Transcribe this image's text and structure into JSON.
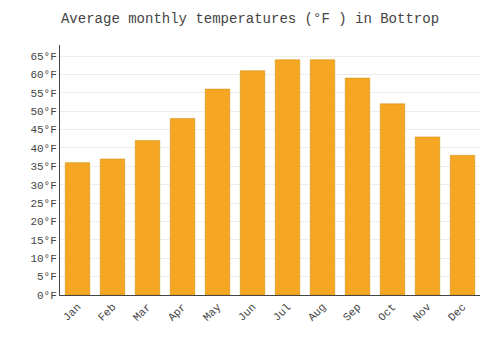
{
  "chart_data": {
    "type": "bar",
    "title": "Average monthly temperatures (°F ) in Bottrop",
    "categories": [
      "Jan",
      "Feb",
      "Mar",
      "Apr",
      "May",
      "Jun",
      "Jul",
      "Aug",
      "Sep",
      "Oct",
      "Nov",
      "Dec"
    ],
    "values": [
      36,
      37,
      42,
      48,
      56,
      61,
      64,
      64,
      59,
      52,
      43,
      38
    ],
    "color": "#F5A623",
    "ylim": [
      0,
      68
    ],
    "yticks": [
      {
        "value": 0,
        "label": "0°F"
      },
      {
        "value": 5,
        "label": "5°F"
      },
      {
        "value": 10,
        "label": "10°F"
      },
      {
        "value": 15,
        "label": "15°F"
      },
      {
        "value": 20,
        "label": "20°F"
      },
      {
        "value": 25,
        "label": "25°F"
      },
      {
        "value": 30,
        "label": "30°F"
      },
      {
        "value": 35,
        "label": "35°F"
      },
      {
        "value": 40,
        "label": "40°F"
      },
      {
        "value": 45,
        "label": "45°F"
      },
      {
        "value": 50,
        "label": "50°F"
      },
      {
        "value": 55,
        "label": "55°F"
      },
      {
        "value": 60,
        "label": "60°F"
      },
      {
        "value": 65,
        "label": "65°F"
      }
    ],
    "grid": true
  }
}
